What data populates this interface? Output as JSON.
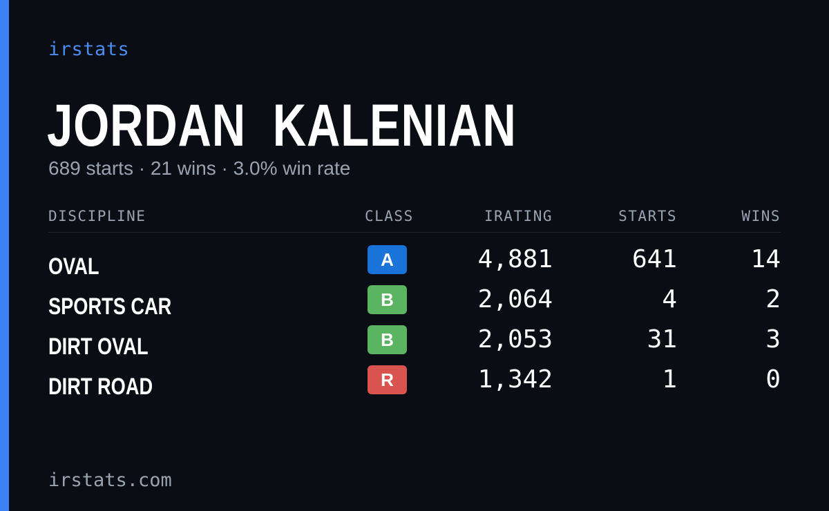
{
  "brand": "irstats",
  "player": {
    "name": "JORDAN  KALENIAN",
    "summary": "689 starts · 21 wins · 3.0% win rate"
  },
  "table": {
    "headers": {
      "discipline": "DISCIPLINE",
      "class": "CLASS",
      "irating": "IRATING",
      "starts": "STARTS",
      "wins": "WINS"
    },
    "rows": [
      {
        "discipline": "OVAL",
        "class": "A",
        "class_color": "#1a73d9",
        "irating": "4,881",
        "starts": "641",
        "wins": "14"
      },
      {
        "discipline": "SPORTS CAR",
        "class": "B",
        "class_color": "#5bb462",
        "irating": "2,064",
        "starts": "4",
        "wins": "2"
      },
      {
        "discipline": "DIRT OVAL",
        "class": "B",
        "class_color": "#5bb462",
        "irating": "2,053",
        "starts": "31",
        "wins": "3"
      },
      {
        "discipline": "DIRT ROAD",
        "class": "R",
        "class_color": "#d9534f",
        "irating": "1,342",
        "starts": "1",
        "wins": "0"
      }
    ]
  },
  "footer": "irstats.com",
  "colors": {
    "background": "#0b0d14",
    "accent": "#3b82f6"
  }
}
